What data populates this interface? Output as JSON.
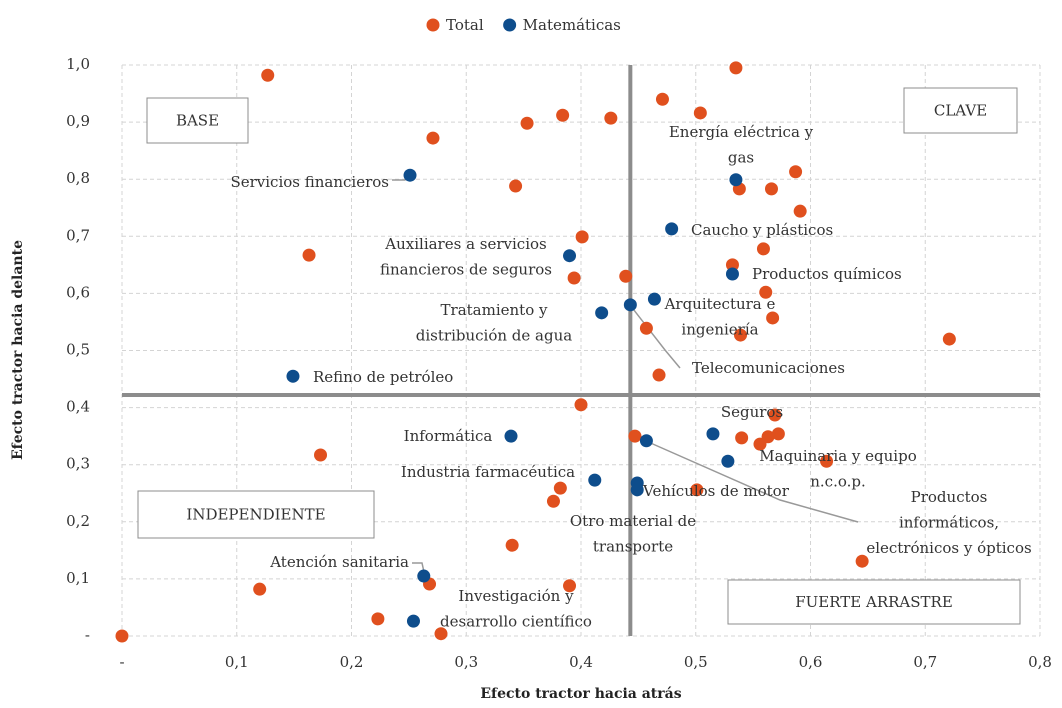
{
  "chart_data": {
    "type": "scatter",
    "xlabel": "Efecto tractor hacia atrás",
    "ylabel": "Efecto tractor hacia delante",
    "xlim": [
      0,
      0.8
    ],
    "ylim": [
      0,
      1.0
    ],
    "xticks": [
      {
        "value": 0,
        "label": "-"
      },
      {
        "value": 0.1,
        "label": "0,1"
      },
      {
        "value": 0.2,
        "label": "0,2"
      },
      {
        "value": 0.3,
        "label": "0,3"
      },
      {
        "value": 0.4,
        "label": "0,4"
      },
      {
        "value": 0.5,
        "label": "0,5"
      },
      {
        "value": 0.6,
        "label": "0,6"
      },
      {
        "value": 0.7,
        "label": "0,7"
      },
      {
        "value": 0.8,
        "label": "0,8"
      }
    ],
    "yticks": [
      {
        "value": 0,
        "label": "-"
      },
      {
        "value": 0.1,
        "label": "0,1"
      },
      {
        "value": 0.2,
        "label": "0,2"
      },
      {
        "value": 0.3,
        "label": "0,3"
      },
      {
        "value": 0.4,
        "label": "0,4"
      },
      {
        "value": 0.5,
        "label": "0,5"
      },
      {
        "value": 0.6,
        "label": "0,6"
      },
      {
        "value": 0.7,
        "label": "0,7"
      },
      {
        "value": 0.8,
        "label": "0,8"
      },
      {
        "value": 0.9,
        "label": "0,9"
      },
      {
        "value": 1.0,
        "label": "1,0"
      }
    ],
    "grid": true,
    "legend": "top",
    "reference_lines": {
      "x": 0.443,
      "y": 0.422,
      "color": "#8c8c8c"
    },
    "quadrants": [
      "BASE",
      "CLAVE",
      "INDEPENDIENTE",
      "FUERTE ARRASTRE"
    ],
    "series": [
      {
        "name": "Total",
        "color": "#e0501e",
        "x": [
          0,
          0.127,
          0.535,
          0.471,
          0.504,
          0.384,
          0.426,
          0.353,
          0.271,
          0.587,
          0.343,
          0.538,
          0.566,
          0.591,
          0.401,
          0.163,
          0.559,
          0.532,
          0.439,
          0.394,
          0.561,
          0.567,
          0.457,
          0.539,
          0.721,
          0.468,
          0.4,
          0.569,
          0.447,
          0.54,
          0.563,
          0.572,
          0.556,
          0.173,
          0.614,
          0.382,
          0.376,
          0.501,
          0.34,
          0.645,
          0.12,
          0.268,
          0.39,
          0.223,
          0.278
        ],
        "values": [
          0,
          0.982,
          0.995,
          0.94,
          0.916,
          0.912,
          0.907,
          0.898,
          0.872,
          0.813,
          0.788,
          0.783,
          0.783,
          0.744,
          0.699,
          0.667,
          0.678,
          0.65,
          0.63,
          0.627,
          0.602,
          0.557,
          0.539,
          0.527,
          0.52,
          0.457,
          0.405,
          0.387,
          0.35,
          0.347,
          0.349,
          0.354,
          0.336,
          0.317,
          0.306,
          0.259,
          0.236,
          0.256,
          0.159,
          0.131,
          0.082,
          0.091,
          0.088,
          0.03,
          0.004
        ]
      },
      {
        "name": "Matemáticas",
        "color": "#0e4d8c",
        "x": [
          0.251,
          0.535,
          0.479,
          0.39,
          0.532,
          0.464,
          0.443,
          0.418,
          0.149,
          0.339,
          0.515,
          0.457,
          0.528,
          0.412,
          0.449,
          0.449,
          0.263,
          0.254
        ],
        "values": [
          0.807,
          0.799,
          0.713,
          0.666,
          0.634,
          0.59,
          0.58,
          0.566,
          0.455,
          0.35,
          0.354,
          0.342,
          0.306,
          0.273,
          0.268,
          0.256,
          0.105,
          0.026
        ]
      }
    ],
    "annotations": [
      {
        "lines": [
          "Servicios financieros"
        ]
      },
      {
        "lines": [
          "Energía eléctrica y",
          "gas"
        ]
      },
      {
        "lines": [
          "Caucho y plásticos"
        ]
      },
      {
        "lines": [
          "Auxiliares a servicios",
          "financieros de seguros"
        ]
      },
      {
        "lines": [
          "Productos químicos"
        ]
      },
      {
        "lines": [
          "Tratamiento y",
          "distribución de agua"
        ]
      },
      {
        "lines": [
          "Arquitectura e",
          "ingeniería"
        ]
      },
      {
        "lines": [
          "Telecomunicaciones"
        ]
      },
      {
        "lines": [
          "Refino de petróleo"
        ]
      },
      {
        "lines": [
          "Informática"
        ]
      },
      {
        "lines": [
          "Seguros"
        ]
      },
      {
        "lines": [
          "Maquinaria y equipo",
          "n.c.o.p."
        ]
      },
      {
        "lines": [
          "Industria farmacéutica"
        ]
      },
      {
        "lines": [
          "Vehículos de motor"
        ]
      },
      {
        "lines": [
          "Otro material de",
          "transporte"
        ]
      },
      {
        "lines": [
          "Productos",
          "informáticos,",
          "electrónicos y ópticos"
        ]
      },
      {
        "lines": [
          "Atención sanitaria"
        ]
      },
      {
        "lines": [
          "Investigación y",
          "desarrollo científico"
        ]
      }
    ]
  }
}
